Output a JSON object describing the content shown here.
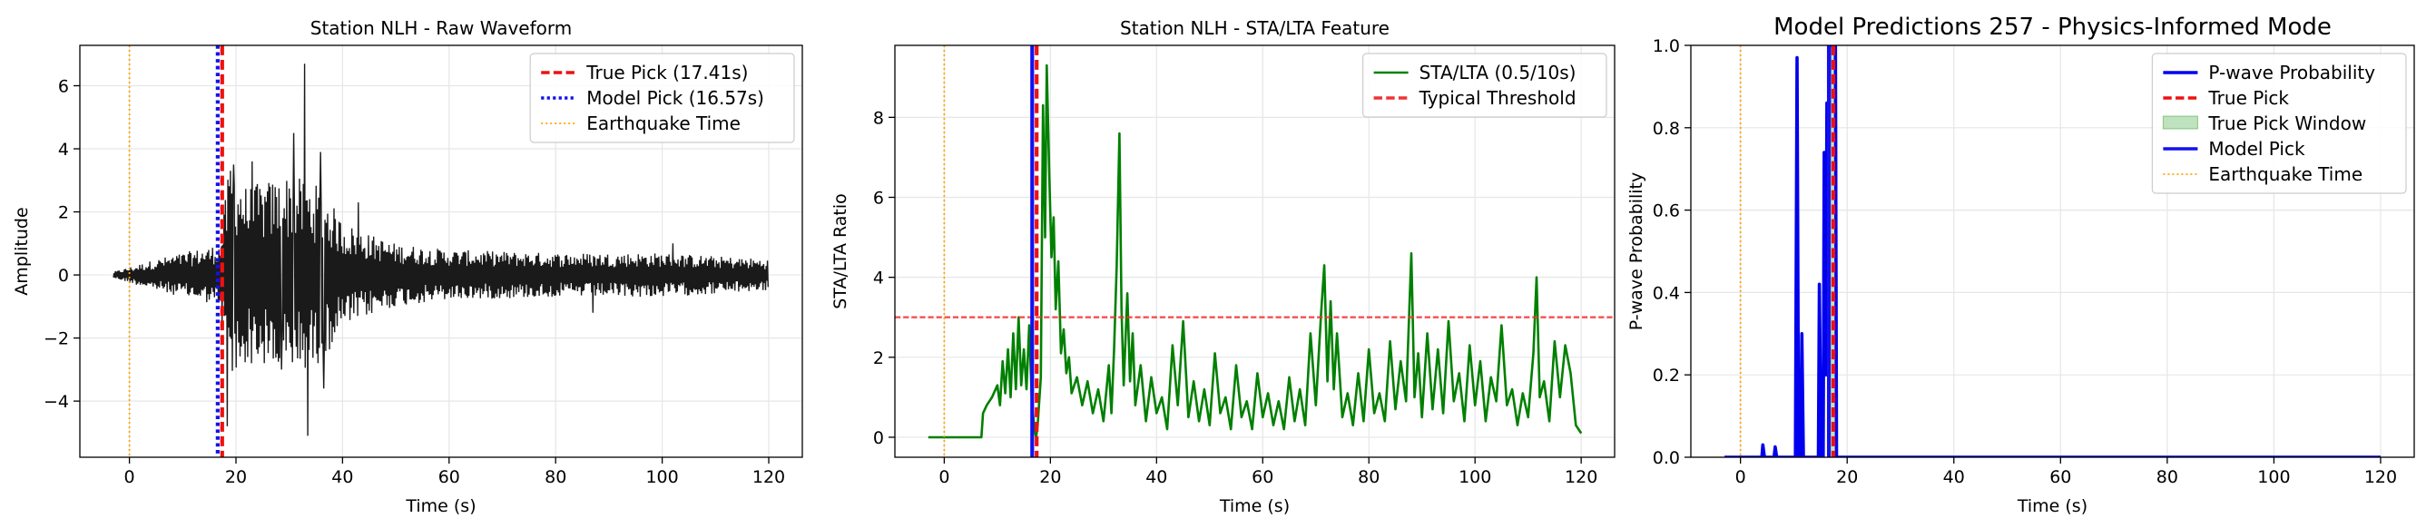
{
  "chart_data": [
    {
      "type": "line",
      "title": "Station NLH - Raw Waveform",
      "xlabel": "Time (s)",
      "ylabel": "Amplitude",
      "xlim": [
        -9.3,
        126.3
      ],
      "ylim": [
        -5.78,
        7.28
      ],
      "xticks": [
        0,
        20,
        40,
        60,
        80,
        100,
        120
      ],
      "xtick_labels": [
        "0",
        "20",
        "40",
        "60",
        "80",
        "100",
        "120"
      ],
      "yticks": [
        -4,
        -2,
        0,
        2,
        4,
        6
      ],
      "ytick_labels": [
        "−4",
        "−2",
        "0",
        "2",
        "4",
        "6"
      ],
      "grid": true,
      "legend_position": "top-right",
      "waveform": {
        "x_start": -3,
        "x_end": 120,
        "color": "#1a1a1a",
        "envelope": [
          [
            -3,
            0.1
          ],
          [
            5,
            0.5
          ],
          [
            10,
            0.7
          ],
          [
            15,
            0.9
          ],
          [
            17,
            1.0
          ],
          [
            19,
            3.8
          ],
          [
            22,
            2.8
          ],
          [
            26,
            3.0
          ],
          [
            30,
            3.2
          ],
          [
            33,
            3.0
          ],
          [
            36,
            2.8
          ],
          [
            40,
            1.7
          ],
          [
            45,
            1.3
          ],
          [
            50,
            1.0
          ],
          [
            60,
            0.8
          ],
          [
            80,
            0.7
          ],
          [
            100,
            0.7
          ],
          [
            120,
            0.5
          ]
        ],
        "spikes": [
          [
            18.3,
            -4.8
          ],
          [
            32.9,
            6.7
          ],
          [
            33.5,
            -5.1
          ],
          [
            30.8,
            4.5
          ],
          [
            35.9,
            3.9
          ],
          [
            36.5,
            -3.6
          ],
          [
            23.0,
            3.6
          ],
          [
            28.6,
            -3.0
          ],
          [
            102.0,
            1.0
          ],
          [
            87.0,
            -1.2
          ],
          [
            43.0,
            2.3
          ],
          [
            19.5,
            3.5
          ]
        ]
      },
      "vlines": [
        {
          "name": "True Pick (17.41s)",
          "x": 17.41,
          "color": "#ee1111",
          "style": "dashed",
          "legend": true
        },
        {
          "name": "Model Pick (16.57s)",
          "x": 16.57,
          "color": "#1111ee",
          "style": "dotted",
          "legend": true
        },
        {
          "name": "Earthquake Time",
          "x": 0,
          "color": "#ffa500",
          "style": "dotted-thin",
          "legend": true
        }
      ]
    },
    {
      "type": "line",
      "title": "Station NLH - STA/LTA Feature",
      "xlabel": "Time (s)",
      "ylabel": "STA/LTA Ratio",
      "xlim": [
        -9.3,
        126.3
      ],
      "ylim": [
        -0.5,
        9.8
      ],
      "xticks": [
        0,
        20,
        40,
        60,
        80,
        100,
        120
      ],
      "xtick_labels": [
        "0",
        "20",
        "40",
        "60",
        "80",
        "100",
        "120"
      ],
      "yticks": [
        0,
        2,
        4,
        6,
        8
      ],
      "ytick_labels": [
        "0",
        "2",
        "4",
        "6",
        "8"
      ],
      "grid": true,
      "legend_position": "top-right",
      "series": [
        {
          "name": "STA/LTA (0.5/10s)",
          "color": "#008000",
          "points": [
            [
              -3,
              0
            ],
            [
              7,
              0
            ],
            [
              7.3,
              0.6
            ],
            [
              8,
              0.8
            ],
            [
              9,
              1.0
            ],
            [
              10,
              1.3
            ],
            [
              10.5,
              0.8
            ],
            [
              11,
              1.9
            ],
            [
              11.5,
              1.1
            ],
            [
              12,
              2.2
            ],
            [
              12.5,
              1.0
            ],
            [
              13,
              2.6
            ],
            [
              13.5,
              1.2
            ],
            [
              14,
              3.0
            ],
            [
              14.5,
              1.3
            ],
            [
              15,
              2.2
            ],
            [
              15.5,
              1.2
            ],
            [
              16,
              2.8
            ],
            [
              16.5,
              0.9
            ],
            [
              17,
              0.2
            ],
            [
              17.3,
              0.0
            ],
            [
              17.6,
              0.3
            ],
            [
              18.2,
              1.5
            ],
            [
              18.6,
              8.3
            ],
            [
              19,
              5.0
            ],
            [
              19.3,
              9.3
            ],
            [
              19.8,
              6.5
            ],
            [
              20.2,
              4.5
            ],
            [
              20.6,
              5.5
            ],
            [
              21,
              3.2
            ],
            [
              21.5,
              4.4
            ],
            [
              22,
              2.1
            ],
            [
              22.5,
              2.7
            ],
            [
              23,
              1.6
            ],
            [
              23.5,
              2.0
            ],
            [
              24,
              1.1
            ],
            [
              25,
              1.5
            ],
            [
              26,
              0.8
            ],
            [
              27,
              1.4
            ],
            [
              28,
              0.6
            ],
            [
              29,
              1.2
            ],
            [
              30,
              0.4
            ],
            [
              31,
              1.8
            ],
            [
              31.5,
              0.6
            ],
            [
              32,
              2.2
            ],
            [
              32.5,
              4.3
            ],
            [
              33,
              7.6
            ],
            [
              33.4,
              3.2
            ],
            [
              33.8,
              1.3
            ],
            [
              34.5,
              3.6
            ],
            [
              35,
              1.4
            ],
            [
              35.5,
              2.6
            ],
            [
              36,
              0.8
            ],
            [
              37,
              1.8
            ],
            [
              38,
              0.4
            ],
            [
              39,
              1.5
            ],
            [
              40,
              0.6
            ],
            [
              41,
              1.0
            ],
            [
              42,
              0.2
            ],
            [
              43,
              2.3
            ],
            [
              44,
              0.8
            ],
            [
              45,
              2.9
            ],
            [
              46,
              0.5
            ],
            [
              47,
              1.4
            ],
            [
              48,
              0.4
            ],
            [
              49,
              1.2
            ],
            [
              50,
              0.3
            ],
            [
              51,
              2.1
            ],
            [
              52,
              0.6
            ],
            [
              53,
              1.0
            ],
            [
              54,
              0.2
            ],
            [
              55,
              1.8
            ],
            [
              56,
              0.5
            ],
            [
              57,
              0.9
            ],
            [
              58,
              0.2
            ],
            [
              59,
              1.6
            ],
            [
              60,
              0.5
            ],
            [
              61,
              1.1
            ],
            [
              62,
              0.3
            ],
            [
              63,
              0.9
            ],
            [
              64,
              0.2
            ],
            [
              65,
              1.5
            ],
            [
              66,
              0.4
            ],
            [
              67,
              1.2
            ],
            [
              68,
              0.3
            ],
            [
              69,
              2.6
            ],
            [
              70,
              0.8
            ],
            [
              71,
              3.1
            ],
            [
              71.6,
              4.3
            ],
            [
              72.2,
              1.4
            ],
            [
              72.8,
              3.4
            ],
            [
              73.4,
              1.2
            ],
            [
              74,
              2.6
            ],
            [
              75,
              0.5
            ],
            [
              76,
              1.1
            ],
            [
              77,
              0.3
            ],
            [
              78,
              1.6
            ],
            [
              79,
              0.4
            ],
            [
              80,
              2.2
            ],
            [
              81,
              0.6
            ],
            [
              82,
              1.1
            ],
            [
              83,
              0.4
            ],
            [
              84,
              2.4
            ],
            [
              85,
              0.7
            ],
            [
              86,
              1.9
            ],
            [
              87,
              0.9
            ],
            [
              88,
              4.6
            ],
            [
              88.6,
              1.0
            ],
            [
              89.3,
              2.1
            ],
            [
              90,
              0.5
            ],
            [
              91,
              2.6
            ],
            [
              92,
              0.7
            ],
            [
              93,
              2.2
            ],
            [
              94,
              0.6
            ],
            [
              95,
              2.9
            ],
            [
              96,
              0.9
            ],
            [
              97,
              1.6
            ],
            [
              98,
              0.4
            ],
            [
              99,
              2.3
            ],
            [
              100,
              0.8
            ],
            [
              101,
              1.9
            ],
            [
              102,
              0.4
            ],
            [
              103,
              1.5
            ],
            [
              104,
              0.9
            ],
            [
              105,
              2.8
            ],
            [
              106,
              0.8
            ],
            [
              107,
              1.2
            ],
            [
              108,
              0.3
            ],
            [
              109,
              1.1
            ],
            [
              110,
              0.5
            ],
            [
              111,
              2.1
            ],
            [
              111.6,
              4.0
            ],
            [
              112.2,
              1.0
            ],
            [
              113,
              1.4
            ],
            [
              114,
              0.4
            ],
            [
              115,
              2.4
            ],
            [
              116,
              1.0
            ],
            [
              117,
              2.3
            ],
            [
              118,
              1.6
            ],
            [
              119,
              0.3
            ],
            [
              120,
              0.1
            ]
          ]
        }
      ],
      "hlines": [
        {
          "name": "Typical Threshold",
          "y": 3,
          "color": "#ee3333",
          "style": "dashed",
          "legend": true
        }
      ],
      "vlines": [
        {
          "name": "Model Pick",
          "x": 16.57,
          "color": "#1111ee",
          "style": "solid",
          "legend": false
        },
        {
          "name": "True Pick",
          "x": 17.41,
          "color": "#ee1111",
          "style": "dashed",
          "legend": false
        },
        {
          "name": "Earthquake Time",
          "x": 0,
          "color": "#ffa500",
          "style": "dotted-thin",
          "legend": false
        }
      ]
    },
    {
      "type": "line",
      "title": "Model Predictions 257 - Physics-Informed Mode",
      "xlabel": "Time (s)",
      "ylabel": "P-wave Probability",
      "xlim": [
        -9.3,
        126.3
      ],
      "ylim": [
        0,
        1
      ],
      "xticks": [
        0,
        20,
        40,
        60,
        80,
        100,
        120
      ],
      "xtick_labels": [
        "0",
        "20",
        "40",
        "60",
        "80",
        "100",
        "120"
      ],
      "yticks": [
        0,
        0.2,
        0.4,
        0.6,
        0.8,
        1.0
      ],
      "ytick_labels": [
        "0.0",
        "0.2",
        "0.4",
        "0.6",
        "0.8",
        "1.0"
      ],
      "grid": true,
      "legend_position": "top-right",
      "series": [
        {
          "name": "P-wave Probability",
          "color": "#0000ee",
          "points": [
            [
              -3,
              0
            ],
            [
              4,
              0
            ],
            [
              4.2,
              0.03
            ],
            [
              4.5,
              0
            ],
            [
              6.3,
              0
            ],
            [
              6.5,
              0.025
            ],
            [
              6.8,
              0
            ],
            [
              10.3,
              0
            ],
            [
              10.6,
              0.97
            ],
            [
              10.9,
              0
            ],
            [
              11.3,
              0
            ],
            [
              11.5,
              0.3
            ],
            [
              11.8,
              0
            ],
            [
              14.6,
              0
            ],
            [
              14.8,
              0.42
            ],
            [
              15.1,
              0
            ],
            [
              15.5,
              0
            ],
            [
              15.7,
              0.74
            ],
            [
              16,
              0.2
            ],
            [
              16.2,
              0.86
            ],
            [
              16.5,
              0.3
            ],
            [
              16.7,
              1.0
            ],
            [
              17.8,
              1.0
            ],
            [
              18.0,
              0
            ],
            [
              120,
              0
            ]
          ]
        }
      ],
      "true_pick_window": {
        "name": "True Pick Window",
        "x_start": 16.9,
        "x_end": 17.9,
        "color": "#2ca02c"
      },
      "vlines": [
        {
          "name": "True Pick",
          "x": 17.41,
          "color": "#ee1111",
          "style": "dashed",
          "legend": true
        },
        {
          "name": "Model Pick",
          "x": 16.57,
          "color": "#1111ee",
          "style": "solid",
          "legend": true
        },
        {
          "name": "Earthquake Time",
          "x": 0,
          "color": "#ffa500",
          "style": "dotted-thin",
          "legend": true
        }
      ]
    }
  ]
}
